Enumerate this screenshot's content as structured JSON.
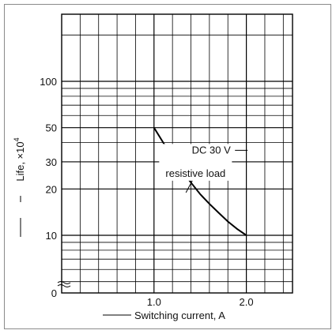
{
  "chart_data": {
    "type": "line",
    "title": "",
    "xlabel": "Switching current, A",
    "ylabel": "Life, ×10",
    "ylabel_exponent": "4",
    "xlim": [
      0,
      2.5
    ],
    "ylim": [
      0,
      100
    ],
    "y_scale": "log",
    "grid": true,
    "x_ticks": [
      {
        "value": 1.0,
        "label": "1.0"
      },
      {
        "value": 2.0,
        "label": "2.0"
      }
    ],
    "y_ticks": [
      {
        "value": 100,
        "label": "100"
      },
      {
        "value": 50,
        "label": "50"
      },
      {
        "value": 30,
        "label": "30"
      },
      {
        "value": 20,
        "label": "20"
      },
      {
        "value": 10,
        "label": "10"
      },
      {
        "value": 0,
        "label": "0"
      }
    ],
    "series": [
      {
        "x": [
          1.0,
          1.1,
          1.2,
          1.3,
          1.4,
          1.5,
          1.6,
          1.7,
          1.8,
          1.9,
          2.0
        ],
        "y": [
          50,
          40,
          32,
          26.5,
          22,
          18.5,
          16,
          14,
          12.3,
          11,
          10
        ],
        "color": "#000000"
      }
    ],
    "annotations": [
      {
        "text": "DC 30 V",
        "x": 1.62,
        "y": 34
      },
      {
        "text": "resistive load",
        "x": 1.45,
        "y": 24
      }
    ]
  }
}
